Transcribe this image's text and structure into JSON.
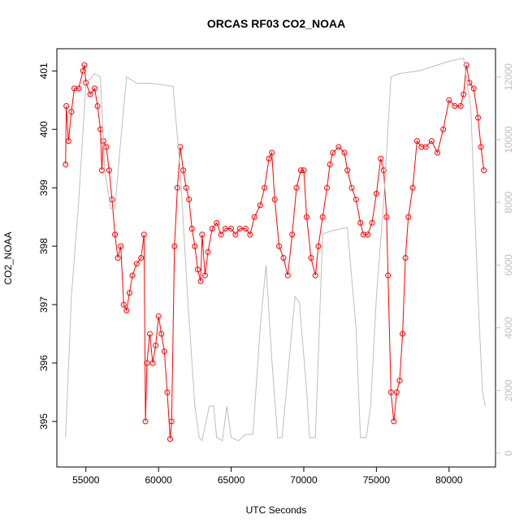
{
  "chart_data": {
    "type": "scatter",
    "title": "ORCAS RF03 CO2_NOAA",
    "x_label": "UTC Seconds",
    "y_label": "CO2_NOAA",
    "xlim": [
      53000,
      83200
    ],
    "ylim": [
      394.22,
      401.38
    ],
    "y2lim": [
      -440,
      12900
    ],
    "xticks": [
      55000,
      60000,
      65000,
      70000,
      75000,
      80000
    ],
    "yticks": [
      395,
      396,
      397,
      398,
      399,
      400,
      401
    ],
    "y2ticks": [
      0,
      2000,
      4000,
      6000,
      8000,
      10000,
      12000
    ],
    "series": [
      {
        "color": "#ff0000",
        "markers": true,
        "axis": "y",
        "x": [
          53600,
          53650,
          53800,
          54000,
          54200,
          54500,
          54800,
          54900,
          55000,
          55300,
          55600,
          55800,
          56000,
          56100,
          56200,
          56400,
          56600,
          56800,
          57000,
          57200,
          57400,
          57600,
          57800,
          58000,
          58200,
          58500,
          58800,
          59000,
          59100,
          59200,
          59400,
          59600,
          59800,
          60000,
          60200,
          60400,
          60600,
          60800,
          60900,
          61100,
          61300,
          61500,
          61700,
          61900,
          62100,
          62300,
          62500,
          62700,
          62900,
          63000,
          63200,
          63400,
          63700,
          64000,
          64300,
          64600,
          65000,
          65300,
          65600,
          66000,
          66300,
          66600,
          67000,
          67300,
          67600,
          67800,
          68000,
          68300,
          68600,
          68900,
          69200,
          69500,
          69800,
          70000,
          70200,
          70500,
          70800,
          71000,
          71300,
          71600,
          71800,
          72000,
          72400,
          72800,
          73000,
          73300,
          73600,
          73900,
          74100,
          74400,
          74700,
          75000,
          75300,
          75500,
          75700,
          75800,
          76000,
          76200,
          76400,
          76600,
          76800,
          77000,
          77200,
          77500,
          77800,
          78100,
          78400,
          78800,
          79200,
          79600,
          80000,
          80400,
          80800,
          81000,
          81200,
          81400,
          81700,
          82000,
          82200,
          82400
        ],
        "values": [
          399.4,
          400.4,
          399.8,
          400.3,
          400.7,
          400.7,
          401.0,
          401.1,
          400.8,
          400.6,
          400.7,
          400.4,
          400.0,
          399.3,
          399.8,
          399.7,
          399.3,
          398.8,
          398.2,
          397.8,
          398.0,
          397.0,
          396.9,
          397.2,
          397.5,
          397.7,
          397.8,
          398.2,
          395.0,
          396.0,
          396.5,
          396.0,
          396.3,
          396.8,
          396.5,
          396.2,
          395.5,
          394.7,
          395.0,
          398.0,
          399.0,
          399.7,
          399.3,
          399.0,
          398.8,
          398.3,
          398.0,
          397.6,
          397.4,
          398.2,
          397.5,
          397.9,
          398.3,
          398.4,
          398.2,
          398.3,
          398.3,
          398.2,
          398.3,
          398.3,
          398.2,
          398.5,
          398.7,
          399.0,
          399.5,
          399.6,
          398.8,
          398.0,
          397.8,
          397.5,
          398.2,
          399.0,
          399.3,
          399.3,
          398.5,
          397.8,
          397.5,
          398.0,
          398.5,
          399.0,
          399.4,
          399.6,
          399.7,
          399.6,
          399.3,
          399.0,
          398.8,
          398.4,
          398.2,
          398.2,
          398.4,
          398.9,
          399.5,
          399.3,
          398.5,
          397.5,
          395.5,
          395.0,
          395.5,
          395.7,
          396.5,
          397.8,
          398.5,
          399.0,
          399.8,
          399.7,
          399.7,
          399.8,
          399.6,
          400.0,
          400.5,
          400.4,
          400.4,
          400.6,
          401.1,
          400.8,
          400.7,
          400.2,
          399.7,
          399.3
        ]
      },
      {
        "color": "#bebebe",
        "markers": false,
        "axis": "y2",
        "x": [
          53600,
          54000,
          54500,
          55000,
          55600,
          56000,
          56300,
          56700,
          57000,
          57400,
          57800,
          58500,
          59500,
          61000,
          61500,
          62000,
          62500,
          62800,
          63000,
          63500,
          63800,
          64000,
          64400,
          64700,
          65000,
          65500,
          66000,
          66500,
          67000,
          67400,
          67800,
          68200,
          68500,
          69000,
          69400,
          69700,
          70200,
          70400,
          70800,
          71300,
          72000,
          73000,
          73600,
          73900,
          74300,
          74600,
          75000,
          75500,
          76000,
          76500,
          78000,
          80000,
          81000,
          81500,
          82000,
          82300,
          82500
        ],
        "values": [
          500,
          5000,
          8000,
          11800,
          12100,
          12000,
          9000,
          7800,
          7800,
          10000,
          12000,
          11800,
          11800,
          11700,
          9000,
          5000,
          1500,
          500,
          400,
          1500,
          1500,
          500,
          400,
          1500,
          500,
          400,
          600,
          600,
          4000,
          6000,
          3000,
          500,
          500,
          3000,
          5000,
          4800,
          2000,
          500,
          500,
          7000,
          7100,
          7200,
          4000,
          500,
          500,
          1500,
          5000,
          8000,
          12000,
          12100,
          12200,
          12500,
          12600,
          11000,
          5000,
          2000,
          1500
        ]
      }
    ]
  }
}
